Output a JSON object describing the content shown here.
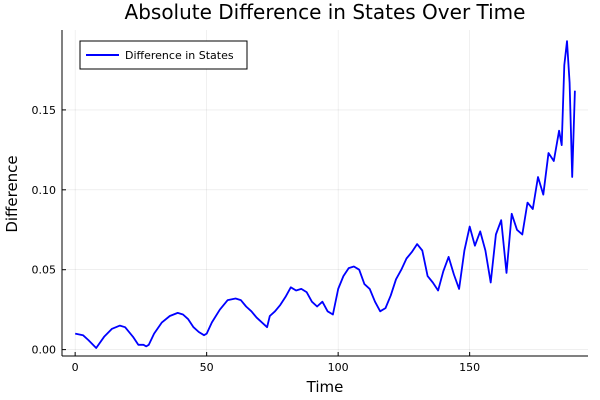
{
  "chart_data": {
    "type": "line",
    "title": "Absolute Difference in States Over Time",
    "xlabel": "Time",
    "ylabel": "Difference",
    "xlim": [
      -5,
      195
    ],
    "ylim": [
      -0.004,
      0.2
    ],
    "xticks": [
      0,
      50,
      100,
      150
    ],
    "yticks": [
      0.0,
      0.05,
      0.1,
      0.15
    ],
    "xtick_labels": [
      "0",
      "50",
      "100",
      "150"
    ],
    "ytick_labels": [
      "0.00",
      "0.05",
      "0.10",
      "0.15"
    ],
    "grid": true,
    "legend_position": "top-left",
    "series": [
      {
        "name": "Difference in States",
        "color": "#0000ff",
        "x": [
          0,
          3,
          5,
          8,
          11,
          14,
          17,
          19,
          22,
          24,
          26,
          27,
          28,
          30,
          33,
          36,
          39,
          41,
          43,
          45,
          47,
          49,
          50,
          52,
          55,
          58,
          61,
          63,
          65,
          67,
          69,
          71,
          73,
          74,
          76,
          78,
          80,
          82,
          84,
          86,
          88,
          90,
          92,
          94,
          96,
          98,
          100,
          102,
          104,
          106,
          108,
          110,
          112,
          114,
          116,
          118,
          120,
          122,
          124,
          126,
          128,
          130,
          132,
          134,
          136,
          138,
          140,
          142,
          144,
          146,
          148,
          150,
          152,
          154,
          156,
          158,
          160,
          162,
          164,
          166,
          168,
          170,
          172,
          174,
          176,
          178,
          180,
          182,
          184,
          185,
          186,
          187,
          188,
          189,
          190
        ],
        "y": [
          0.01,
          0.009,
          0.006,
          0.001,
          0.008,
          0.013,
          0.015,
          0.014,
          0.008,
          0.003,
          0.003,
          0.002,
          0.003,
          0.01,
          0.017,
          0.021,
          0.023,
          0.022,
          0.019,
          0.014,
          0.011,
          0.009,
          0.01,
          0.017,
          0.025,
          0.031,
          0.032,
          0.031,
          0.027,
          0.024,
          0.02,
          0.017,
          0.014,
          0.021,
          0.024,
          0.028,
          0.033,
          0.039,
          0.037,
          0.038,
          0.036,
          0.03,
          0.027,
          0.03,
          0.024,
          0.022,
          0.038,
          0.046,
          0.051,
          0.052,
          0.05,
          0.041,
          0.038,
          0.03,
          0.024,
          0.026,
          0.034,
          0.044,
          0.05,
          0.057,
          0.061,
          0.066,
          0.062,
          0.046,
          0.042,
          0.037,
          0.049,
          0.058,
          0.047,
          0.038,
          0.062,
          0.077,
          0.065,
          0.074,
          0.062,
          0.042,
          0.072,
          0.081,
          0.048,
          0.085,
          0.075,
          0.072,
          0.092,
          0.088,
          0.108,
          0.097,
          0.123,
          0.118,
          0.137,
          0.128,
          0.178,
          0.193,
          0.167,
          0.108,
          0.162
        ]
      }
    ]
  }
}
